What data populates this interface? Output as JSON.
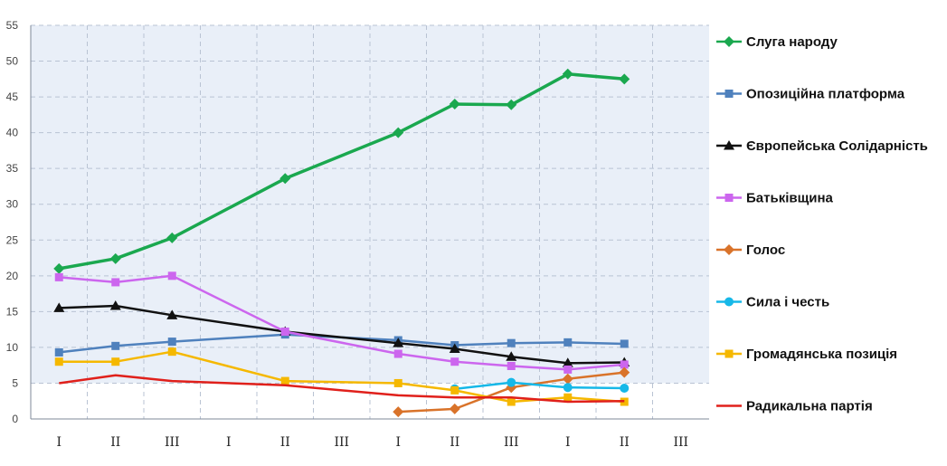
{
  "chart_data": {
    "type": "line",
    "title": "",
    "xlabel": "",
    "ylabel": "",
    "ylim": [
      0,
      55
    ],
    "yticks": [
      0,
      5,
      10,
      15,
      20,
      25,
      30,
      35,
      40,
      45,
      50,
      55
    ],
    "categories": [
      "I",
      "II",
      "III",
      "I",
      "II",
      "III",
      "I",
      "II",
      "III",
      "I",
      "II",
      "III"
    ],
    "grid": true,
    "legend_position": "right",
    "series": [
      {
        "name": "Слуга народу",
        "color": "#1aa84f",
        "marker": "diamond",
        "values": [
          21.0,
          22.4,
          25.3,
          null,
          33.6,
          null,
          40.0,
          44.0,
          43.9,
          48.2,
          47.5,
          null
        ]
      },
      {
        "name": "Опозиційна платформа",
        "color": "#4f81bd",
        "marker": "square",
        "values": [
          9.3,
          10.2,
          10.8,
          null,
          11.8,
          null,
          11.0,
          10.3,
          10.6,
          10.7,
          10.5,
          null
        ]
      },
      {
        "name": "Європейська Солідарність",
        "color": "#111111",
        "marker": "triangle",
        "values": [
          15.5,
          15.8,
          14.5,
          null,
          12.2,
          null,
          10.6,
          9.8,
          8.7,
          7.8,
          7.9,
          null
        ]
      },
      {
        "name": "Батьківщина",
        "color": "#cc66ee",
        "marker": "square",
        "values": [
          19.8,
          19.1,
          20.0,
          null,
          12.2,
          null,
          9.1,
          8.0,
          7.4,
          6.9,
          7.6,
          null
        ]
      },
      {
        "name": "Голос",
        "color": "#d9732a",
        "marker": "diamond",
        "values": [
          null,
          null,
          null,
          null,
          null,
          null,
          1.0,
          1.4,
          4.4,
          5.6,
          6.5,
          null
        ]
      },
      {
        "name": "Сила і честь",
        "color": "#16b8e8",
        "marker": "circle",
        "values": [
          null,
          null,
          null,
          null,
          null,
          null,
          null,
          4.2,
          5.1,
          4.4,
          4.3,
          null
        ]
      },
      {
        "name": "Громадянська позиція",
        "color": "#f5b800",
        "marker": "square",
        "values": [
          8.0,
          8.0,
          9.4,
          null,
          5.3,
          null,
          5.0,
          4.0,
          2.4,
          3.0,
          2.4,
          null
        ]
      },
      {
        "name": "Радикальна партія",
        "color": "#e0201b",
        "marker": "none",
        "values": [
          5.0,
          6.1,
          5.3,
          null,
          4.7,
          null,
          3.3,
          3.0,
          3.0,
          2.4,
          2.5,
          null
        ]
      }
    ]
  }
}
